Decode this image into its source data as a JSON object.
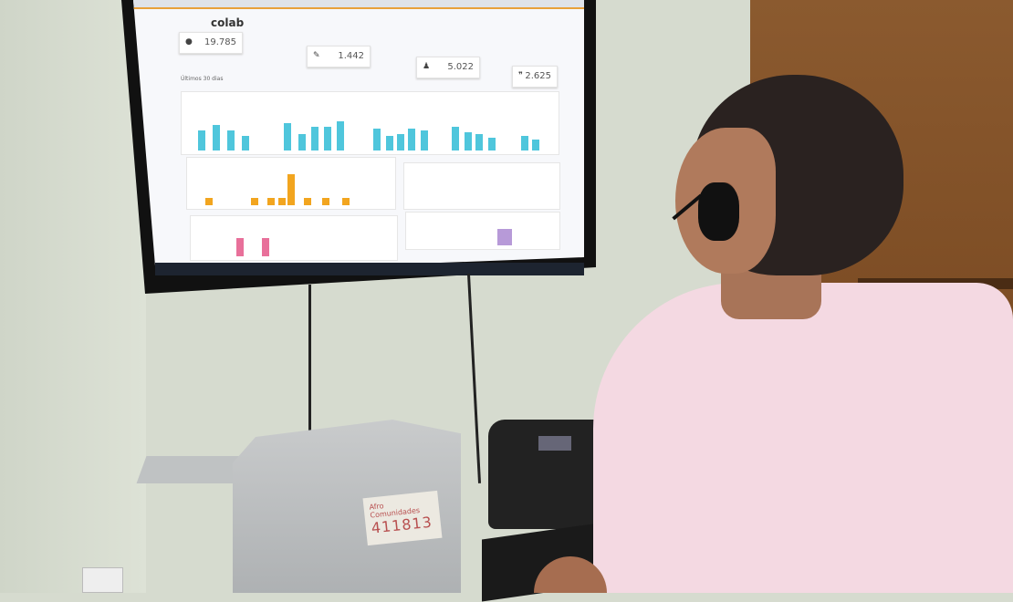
{
  "screen": {
    "logo": "colab",
    "metrics": [
      {
        "icon": "user-icon",
        "value": "19.785"
      },
      {
        "icon": "edit-icon",
        "value": "1.442"
      },
      {
        "icon": "person-icon",
        "value": "5.022"
      },
      {
        "icon": "quote-icon",
        "value": "2.625"
      }
    ],
    "period": "Últimos 30 dias",
    "colors": {
      "chart_blue": "#4fc6dc",
      "chart_orange": "#f2a51f",
      "chart_pink": "#e8709a",
      "chart_purple": "#b79ad8"
    }
  },
  "note": {
    "line1": "Afro Comunidades",
    "line2": "411813"
  }
}
